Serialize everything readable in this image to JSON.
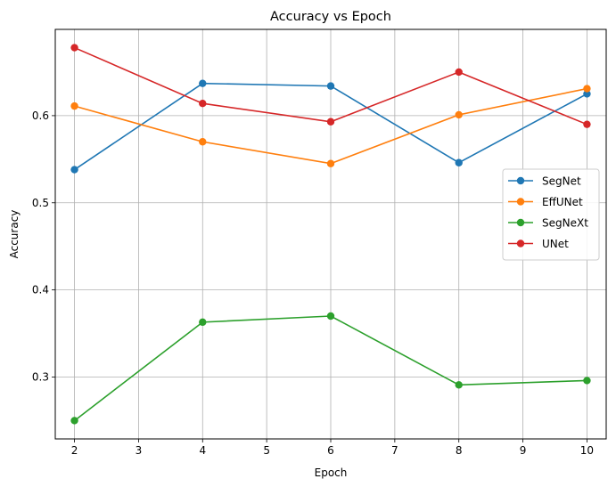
{
  "chart_data": {
    "type": "line",
    "title": "Accuracy vs Epoch",
    "xlabel": "Epoch",
    "ylabel": "Accuracy",
    "xlim": [
      1.7,
      10.3
    ],
    "ylim": [
      0.229,
      0.699
    ],
    "xticks": [
      2,
      3,
      4,
      5,
      6,
      7,
      8,
      9,
      10
    ],
    "yticks": [
      0.3,
      0.4,
      0.5,
      0.6
    ],
    "ytick_labels": [
      "0.3",
      "0.4",
      "0.5",
      "0.6"
    ],
    "grid": true,
    "legend_position": "center-right",
    "x": [
      2,
      4,
      6,
      8,
      10
    ],
    "series": [
      {
        "name": "SegNet",
        "color": "#1f77b4",
        "marker": "circle",
        "values": [
          0.538,
          0.637,
          0.634,
          0.546,
          0.625
        ]
      },
      {
        "name": "EffUNet",
        "color": "#ff7f0e",
        "marker": "circle",
        "values": [
          0.611,
          0.57,
          0.545,
          0.601,
          0.631
        ]
      },
      {
        "name": "SegNeXt",
        "color": "#2ca02c",
        "marker": "circle",
        "values": [
          0.25,
          0.363,
          0.37,
          0.291,
          0.296
        ]
      },
      {
        "name": "UNet",
        "color": "#d62728",
        "marker": "circle",
        "values": [
          0.678,
          0.614,
          0.593,
          0.65,
          0.59
        ]
      }
    ]
  }
}
